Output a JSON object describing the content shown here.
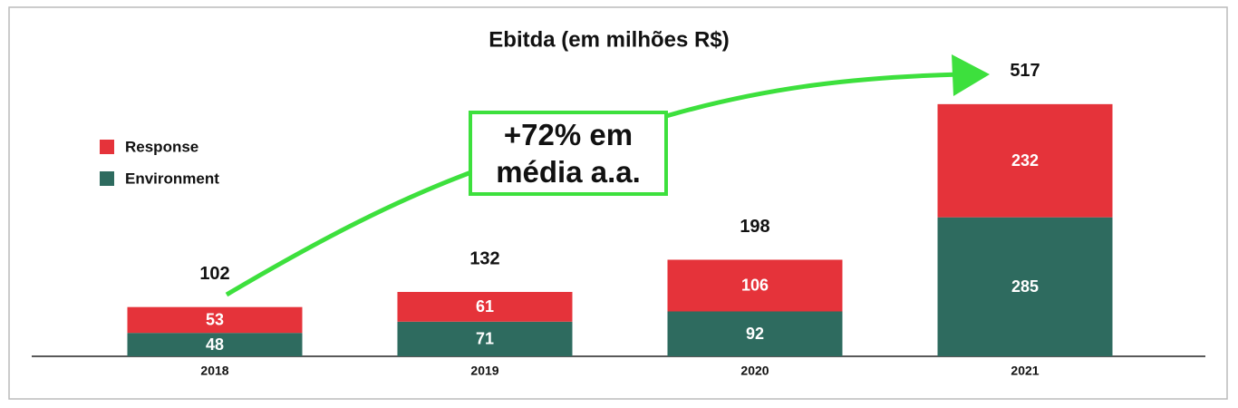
{
  "chart_data": {
    "type": "stacked_bar",
    "title": "Ebitda (em milhões R$)",
    "categories": [
      "2018",
      "2019",
      "2020",
      "2021"
    ],
    "series": [
      {
        "name": "Environment",
        "color": "#2e6b5f",
        "values": [
          48,
          71,
          92,
          285
        ]
      },
      {
        "name": "Response",
        "color": "#e5333a",
        "values": [
          53,
          61,
          106,
          232
        ]
      }
    ],
    "totals": [
      102,
      132,
      198,
      517
    ],
    "annotation": "+72% em média a.a.",
    "legend": "left"
  }
}
